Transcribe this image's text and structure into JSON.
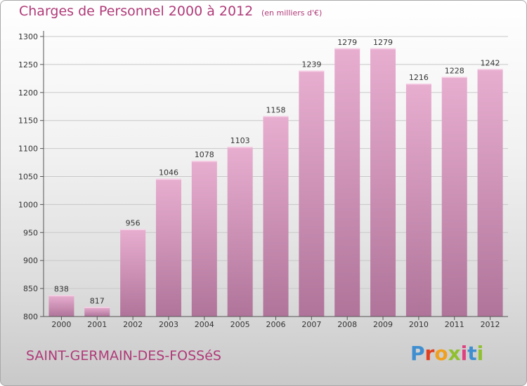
{
  "header": {
    "title": "Charges de Personnel 2000 à 2012",
    "subtitle": "(en milliers d'€)"
  },
  "footer": {
    "commune": "SAINT-GERMAIN-DES-FOSSéS",
    "brand_letters": [
      "P",
      "r",
      "o",
      "x",
      "i",
      "t",
      "i"
    ],
    "brand_colors": [
      "#3f8fd0",
      "#e04020",
      "#f0a020",
      "#90c030",
      "#e04080",
      "#3f8fd0",
      "#90c030"
    ]
  },
  "colors": {
    "bar_light": "#e8aed0",
    "bar_dark": "#b0749a",
    "axis": "#555555",
    "grid": "#c8c8c8",
    "title": "#b03a78"
  },
  "chart_data": {
    "type": "bar",
    "categories": [
      "2000",
      "2001",
      "2002",
      "2003",
      "2004",
      "2005",
      "2006",
      "2007",
      "2008",
      "2009",
      "2010",
      "2011",
      "2012"
    ],
    "values": [
      838,
      817,
      956,
      1046,
      1078,
      1103,
      1158,
      1239,
      1279,
      1279,
      1216,
      1228,
      1242
    ],
    "ylim": [
      800,
      1300
    ],
    "yticks": [
      800,
      850,
      900,
      950,
      1000,
      1050,
      1100,
      1150,
      1200,
      1250,
      1300
    ],
    "grid": true,
    "title": "Charges de Personnel 2000 à 2012",
    "ylabel": "",
    "xlabel": ""
  }
}
